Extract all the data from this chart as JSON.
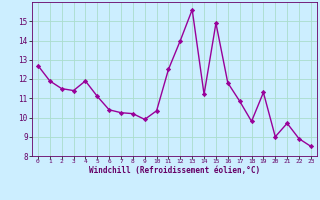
{
  "x": [
    0,
    1,
    2,
    3,
    4,
    5,
    6,
    7,
    8,
    9,
    10,
    11,
    12,
    13,
    14,
    15,
    16,
    17,
    18,
    19,
    20,
    21,
    22,
    23
  ],
  "y": [
    12.7,
    11.9,
    11.5,
    11.4,
    11.9,
    11.1,
    10.4,
    10.25,
    10.2,
    9.9,
    10.35,
    12.5,
    14.0,
    15.6,
    11.2,
    14.9,
    11.8,
    10.85,
    9.8,
    11.3,
    9.0,
    9.7,
    8.9,
    8.5
  ],
  "line_color": "#990099",
  "marker": "D",
  "marker_size": 2.2,
  "bg_color": "#cceeff",
  "grid_color": "#aaddcc",
  "xlabel": "Windchill (Refroidissement éolien,°C)",
  "xlabel_color": "#660066",
  "tick_color": "#660066",
  "xlim": [
    -0.5,
    23.5
  ],
  "ylim": [
    8,
    16
  ],
  "yticks": [
    8,
    9,
    10,
    11,
    12,
    13,
    14,
    15
  ],
  "xticks": [
    0,
    1,
    2,
    3,
    4,
    5,
    6,
    7,
    8,
    9,
    10,
    11,
    12,
    13,
    14,
    15,
    16,
    17,
    18,
    19,
    20,
    21,
    22,
    23
  ],
  "line_width": 1.0
}
